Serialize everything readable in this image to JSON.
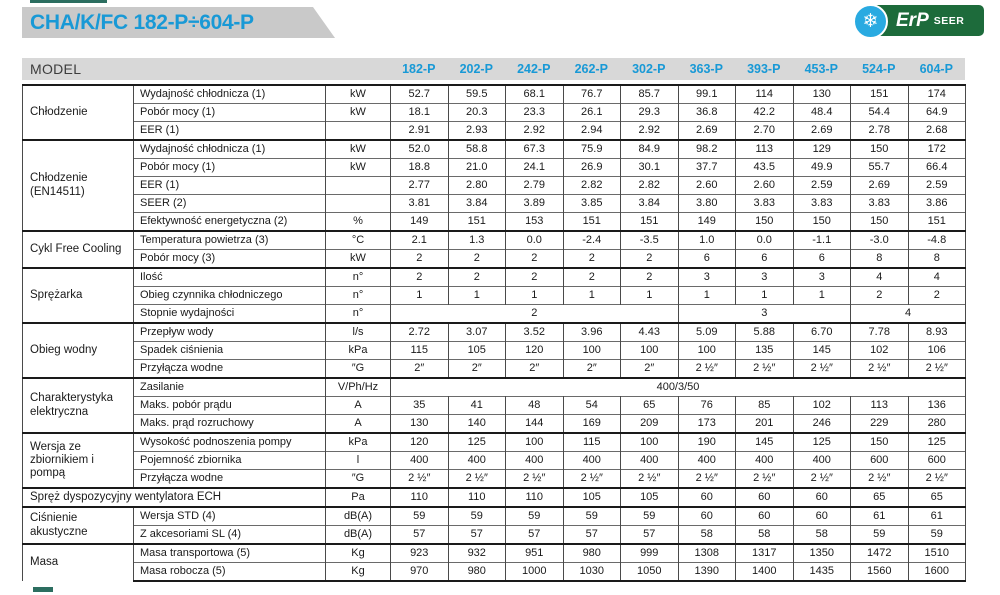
{
  "colors": {
    "accent_teal": "#2c6e60",
    "title_blue": "#1899d6",
    "banner_gray": "#c9c9c9",
    "model_bar_gray": "#d8d8d8",
    "badge_green": "#1d6b3b",
    "badge_blue": "#29aae1"
  },
  "header": {
    "title": "CHA/K/FC 182-P÷604-P",
    "badge": {
      "snowflake_icon": "❄",
      "erp_label": "ErP",
      "seer_label": "SEER"
    }
  },
  "table": {
    "model_header": "MODEL",
    "models": [
      "182-P",
      "202-P",
      "242-P",
      "262-P",
      "302-P",
      "363-P",
      "393-P",
      "453-P",
      "524-P",
      "604-P"
    ],
    "sections": [
      {
        "name": "Chłodzenie",
        "rows": [
          {
            "label": "Wydajność chłodnicza (1)",
            "unit": "kW",
            "values": [
              "52.7",
              "59.5",
              "68.1",
              "76.7",
              "85.7",
              "99.1",
              "114",
              "130",
              "151",
              "174"
            ]
          },
          {
            "label": "Pobór mocy (1)",
            "unit": "kW",
            "values": [
              "18.1",
              "20.3",
              "23.3",
              "26.1",
              "29.3",
              "36.8",
              "42.2",
              "48.4",
              "54.4",
              "64.9"
            ]
          },
          {
            "label": "EER (1)",
            "unit": "",
            "values": [
              "2.91",
              "2.93",
              "2.92",
              "2.94",
              "2.92",
              "2.69",
              "2.70",
              "2.69",
              "2.78",
              "2.68"
            ]
          }
        ]
      },
      {
        "name": "Chłodzenie (EN14511)",
        "rows": [
          {
            "label": "Wydajność chłodnicza (1)",
            "unit": "kW",
            "values": [
              "52.0",
              "58.8",
              "67.3",
              "75.9",
              "84.9",
              "98.2",
              "113",
              "129",
              "150",
              "172"
            ]
          },
          {
            "label": "Pobór mocy (1)",
            "unit": "kW",
            "values": [
              "18.8",
              "21.0",
              "24.1",
              "26.9",
              "30.1",
              "37.7",
              "43.5",
              "49.9",
              "55.7",
              "66.4"
            ]
          },
          {
            "label": "EER (1)",
            "unit": "",
            "values": [
              "2.77",
              "2.80",
              "2.79",
              "2.82",
              "2.82",
              "2.60",
              "2.60",
              "2.59",
              "2.69",
              "2.59"
            ]
          },
          {
            "label": "SEER (2)",
            "unit": "",
            "values": [
              "3.81",
              "3.84",
              "3.89",
              "3.85",
              "3.84",
              "3.80",
              "3.83",
              "3.83",
              "3.83",
              "3.86"
            ]
          },
          {
            "label": "Efektywność energetyczna (2)",
            "unit": "%",
            "values": [
              "149",
              "151",
              "153",
              "151",
              "151",
              "149",
              "150",
              "150",
              "150",
              "151"
            ]
          }
        ]
      },
      {
        "name": "Cykl Free Cooling",
        "rows": [
          {
            "label": "Temperatura powietrza (3)",
            "unit": "°C",
            "values": [
              "2.1",
              "1.3",
              "0.0",
              "-2.4",
              "-3.5",
              "1.0",
              "0.0",
              "-1.1",
              "-3.0",
              "-4.8"
            ]
          },
          {
            "label": "Pobór mocy (3)",
            "unit": "kW",
            "values": [
              "2",
              "2",
              "2",
              "2",
              "2",
              "6",
              "6",
              "6",
              "8",
              "8"
            ]
          }
        ]
      },
      {
        "name": "Sprężarka",
        "rows": [
          {
            "label": "Ilość",
            "unit": "n°",
            "values": [
              "2",
              "2",
              "2",
              "2",
              "2",
              "3",
              "3",
              "3",
              "4",
              "4"
            ]
          },
          {
            "label": "Obieg czynnika chłodniczego",
            "unit": "n°",
            "values": [
              "1",
              "1",
              "1",
              "1",
              "1",
              "1",
              "1",
              "1",
              "2",
              "2"
            ]
          },
          {
            "label": "Stopnie wydajności",
            "unit": "n°",
            "values": [
              {
                "text": "2",
                "span": 5
              },
              {
                "text": "3",
                "span": 3
              },
              {
                "text": "4",
                "span": 2
              }
            ]
          }
        ]
      },
      {
        "name": "Obieg wodny",
        "rows": [
          {
            "label": "Przepływ wody",
            "unit": "l/s",
            "values": [
              "2.72",
              "3.07",
              "3.52",
              "3.96",
              "4.43",
              "5.09",
              "5.88",
              "6.70",
              "7.78",
              "8.93"
            ]
          },
          {
            "label": "Spadek ciśnienia",
            "unit": "kPa",
            "values": [
              "115",
              "105",
              "120",
              "100",
              "100",
              "100",
              "135",
              "145",
              "102",
              "106"
            ]
          },
          {
            "label": "Przyłącza wodne",
            "unit": "″G",
            "values": [
              "2″",
              "2″",
              "2″",
              "2″",
              "2″",
              "2 ½″",
              "2 ½″",
              "2 ½″",
              "2 ½″",
              "2 ½″"
            ]
          }
        ]
      },
      {
        "name": "Charakterystyka elektryczna",
        "rows": [
          {
            "label": "Zasilanie",
            "unit": "V/Ph/Hz",
            "values": [
              {
                "text": "400/3/50",
                "span": 10
              }
            ]
          },
          {
            "label": "Maks. pobór prądu",
            "unit": "A",
            "values": [
              "35",
              "41",
              "48",
              "54",
              "65",
              "76",
              "85",
              "102",
              "113",
              "136"
            ]
          },
          {
            "label": "Maks. prąd rozruchowy",
            "unit": "A",
            "values": [
              "130",
              "140",
              "144",
              "169",
              "209",
              "173",
              "201",
              "246",
              "229",
              "280"
            ]
          }
        ]
      },
      {
        "name": "Wersja ze zbiornikiem i pompą",
        "rows": [
          {
            "label": "Wysokość podnoszenia pompy",
            "unit": "kPa",
            "values": [
              "120",
              "125",
              "100",
              "115",
              "100",
              "190",
              "145",
              "125",
              "150",
              "125"
            ]
          },
          {
            "label": "Pojemność zbiornika",
            "unit": "l",
            "values": [
              "400",
              "400",
              "400",
              "400",
              "400",
              "400",
              "400",
              "400",
              "600",
              "600"
            ]
          },
          {
            "label": "Przyłącza wodne",
            "unit": "″G",
            "values": [
              "2 ½″",
              "2 ½″",
              "2 ½″",
              "2 ½″",
              "2 ½″",
              "2 ½″",
              "2 ½″",
              "2 ½″",
              "2 ½″",
              "2 ½″"
            ]
          }
        ]
      },
      {
        "name": "Spręż dyspozycyjny wentylatora ECH",
        "full_width": true,
        "rows": [
          {
            "label": "",
            "unit": "Pa",
            "values": [
              "110",
              "110",
              "110",
              "105",
              "105",
              "60",
              "60",
              "60",
              "65",
              "65"
            ]
          }
        ]
      },
      {
        "name": "Ciśnienie akustyczne",
        "rows": [
          {
            "label": "Wersja STD (4)",
            "unit": "dB(A)",
            "values": [
              "59",
              "59",
              "59",
              "59",
              "59",
              "60",
              "60",
              "60",
              "61",
              "61"
            ]
          },
          {
            "label": "Z akcesoriami SL (4)",
            "unit": "dB(A)",
            "values": [
              "57",
              "57",
              "57",
              "57",
              "57",
              "58",
              "58",
              "58",
              "59",
              "59"
            ]
          }
        ]
      },
      {
        "name": "Masa",
        "rows": [
          {
            "label": "Masa transportowa (5)",
            "unit": "Kg",
            "values": [
              "923",
              "932",
              "951",
              "980",
              "999",
              "1308",
              "1317",
              "1350",
              "1472",
              "1510"
            ]
          },
          {
            "label": "Masa robocza (5)",
            "unit": "Kg",
            "values": [
              "970",
              "980",
              "1000",
              "1030",
              "1050",
              "1390",
              "1400",
              "1435",
              "1560",
              "1600"
            ]
          }
        ]
      }
    ]
  }
}
